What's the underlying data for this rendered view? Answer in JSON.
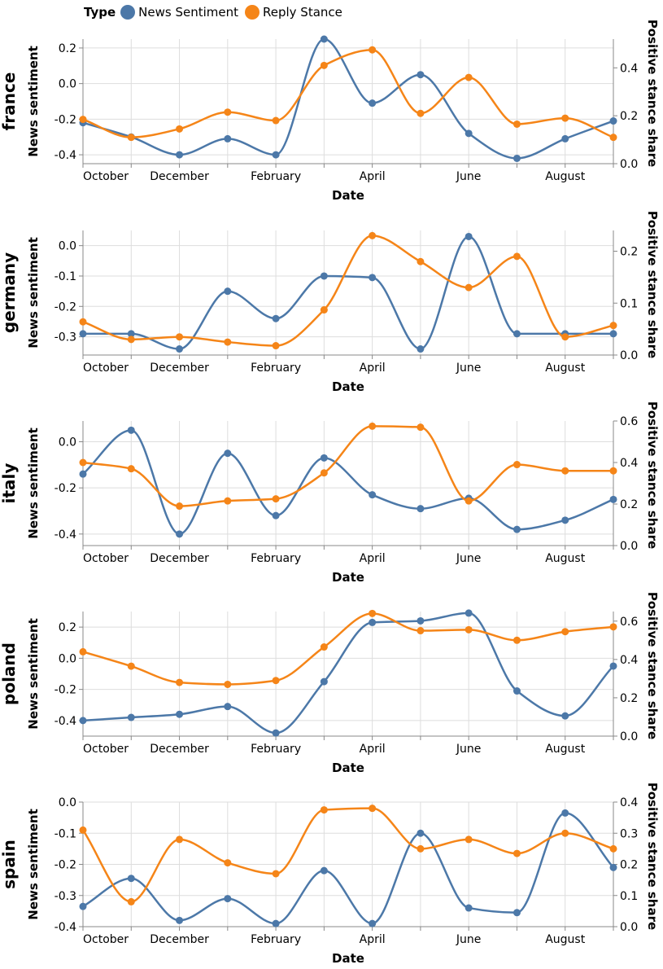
{
  "legend": {
    "title": "Type",
    "entries": [
      {
        "label": "News Sentiment",
        "color": "#4c78a8"
      },
      {
        "label": "Reply Stance",
        "color": "#f58518"
      }
    ]
  },
  "x_tick_labels": [
    "October",
    "December",
    "February",
    "April",
    "June",
    "August"
  ],
  "chart_data": [
    {
      "type": "line",
      "facet": "france",
      "xlabel": "Date",
      "ylabel_left": "News sentiment",
      "ylabel_right": "Positive stance share",
      "x": [
        "Oct",
        "Nov",
        "Dec",
        "Jan",
        "Feb",
        "Mar",
        "Apr",
        "May",
        "Jun",
        "Jul",
        "Aug",
        "Sep"
      ],
      "series": [
        {
          "name": "News Sentiment",
          "axis": "left",
          "values": [
            -0.22,
            -0.3,
            -0.4,
            -0.31,
            -0.4,
            0.25,
            -0.11,
            0.05,
            -0.28,
            -0.42,
            -0.31,
            -0.21
          ]
        },
        {
          "name": "Reply Stance",
          "axis": "right",
          "values": [
            0.185,
            0.11,
            0.145,
            0.215,
            0.18,
            0.41,
            0.475,
            0.21,
            0.36,
            0.165,
            0.19,
            0.11
          ]
        }
      ],
      "ylim_left": [
        -0.45,
        0.25
      ],
      "yticks_left": [
        -0.4,
        -0.2,
        0.0,
        0.2
      ],
      "ylim_right": [
        0,
        0.52
      ],
      "yticks_right": [
        0.0,
        0.2,
        0.4
      ]
    },
    {
      "type": "line",
      "facet": "germany",
      "xlabel": "Date",
      "ylabel_left": "News sentiment",
      "ylabel_right": "Positive stance share",
      "x": [
        "Oct",
        "Nov",
        "Dec",
        "Jan",
        "Feb",
        "Mar",
        "Apr",
        "May",
        "Jun",
        "Jul",
        "Aug",
        "Sep"
      ],
      "series": [
        {
          "name": "News Sentiment",
          "axis": "left",
          "values": [
            -0.29,
            -0.29,
            -0.34,
            -0.15,
            -0.24,
            -0.1,
            -0.105,
            -0.34,
            0.03,
            -0.29,
            -0.29,
            -0.29
          ]
        },
        {
          "name": "Reply Stance",
          "axis": "right",
          "values": [
            0.064,
            0.03,
            0.035,
            0.025,
            0.018,
            0.087,
            0.23,
            0.18,
            0.13,
            0.19,
            0.035,
            0.057
          ]
        }
      ],
      "ylim_left": [
        -0.36,
        0.05
      ],
      "yticks_left": [
        -0.3,
        -0.2,
        -0.1,
        0.0
      ],
      "ylim_right": [
        0,
        0.24
      ],
      "yticks_right": [
        0.0,
        0.1,
        0.2
      ]
    },
    {
      "type": "line",
      "facet": "italy",
      "xlabel": "Date",
      "ylabel_left": "News sentiment",
      "ylabel_right": "Positive stance share",
      "x": [
        "Oct",
        "Nov",
        "Dec",
        "Jan",
        "Feb",
        "Mar",
        "Apr",
        "May",
        "Jun",
        "Jul",
        "Aug",
        "Sep"
      ],
      "series": [
        {
          "name": "News Sentiment",
          "axis": "left",
          "values": [
            -0.14,
            0.05,
            -0.4,
            -0.05,
            -0.32,
            -0.07,
            -0.23,
            -0.29,
            -0.245,
            -0.38,
            -0.34,
            -0.25
          ]
        },
        {
          "name": "Reply Stance",
          "axis": "right",
          "values": [
            0.4,
            0.37,
            0.19,
            0.215,
            0.225,
            0.35,
            0.575,
            0.57,
            0.215,
            0.39,
            0.36,
            0.36
          ]
        }
      ],
      "ylim_left": [
        -0.45,
        0.09
      ],
      "yticks_left": [
        -0.4,
        -0.2,
        0.0
      ],
      "ylim_right": [
        0,
        0.6
      ],
      "yticks_right": [
        0.0,
        0.2,
        0.4,
        0.6
      ]
    },
    {
      "type": "line",
      "facet": "poland",
      "xlabel": "Date",
      "ylabel_left": "News sentiment",
      "ylabel_right": "Positive stance share",
      "x": [
        "Oct",
        "Nov",
        "Dec",
        "Jan",
        "Feb",
        "Mar",
        "Apr",
        "May",
        "Jun",
        "Jul",
        "Aug",
        "Sep"
      ],
      "series": [
        {
          "name": "News Sentiment",
          "axis": "left",
          "values": [
            -0.4,
            -0.38,
            -0.36,
            -0.31,
            -0.48,
            -0.15,
            0.23,
            0.24,
            0.29,
            -0.21,
            -0.37,
            -0.05
          ]
        },
        {
          "name": "Reply Stance",
          "axis": "right",
          "values": [
            0.44,
            0.365,
            0.28,
            0.27,
            0.29,
            0.465,
            0.64,
            0.55,
            0.555,
            0.5,
            0.545,
            0.57
          ]
        }
      ],
      "ylim_left": [
        -0.5,
        0.3
      ],
      "yticks_left": [
        -0.4,
        -0.2,
        0.0,
        0.2
      ],
      "ylim_right": [
        0,
        0.65
      ],
      "yticks_right": [
        0.0,
        0.2,
        0.4,
        0.6
      ]
    },
    {
      "type": "line",
      "facet": "spain",
      "xlabel": "Date",
      "ylabel_left": "News sentiment",
      "ylabel_right": "Positive stance share",
      "x": [
        "Oct",
        "Nov",
        "Dec",
        "Jan",
        "Feb",
        "Mar",
        "Apr",
        "May",
        "Jun",
        "Jul",
        "Aug",
        "Sep"
      ],
      "series": [
        {
          "name": "News Sentiment",
          "axis": "left",
          "values": [
            -0.335,
            -0.245,
            -0.38,
            -0.31,
            -0.39,
            -0.22,
            -0.39,
            -0.1,
            -0.34,
            -0.355,
            -0.035,
            -0.21
          ]
        },
        {
          "name": "Reply Stance",
          "axis": "right",
          "values": [
            0.31,
            0.08,
            0.28,
            0.205,
            0.17,
            0.375,
            0.38,
            0.25,
            0.28,
            0.235,
            0.3,
            0.25
          ]
        }
      ],
      "ylim_left": [
        -0.4,
        0.0
      ],
      "yticks_left": [
        -0.4,
        -0.3,
        -0.2,
        -0.1,
        0.0
      ],
      "ylim_right": [
        0,
        0.4
      ],
      "yticks_right": [
        0.0,
        0.1,
        0.2,
        0.3,
        0.4
      ]
    }
  ]
}
